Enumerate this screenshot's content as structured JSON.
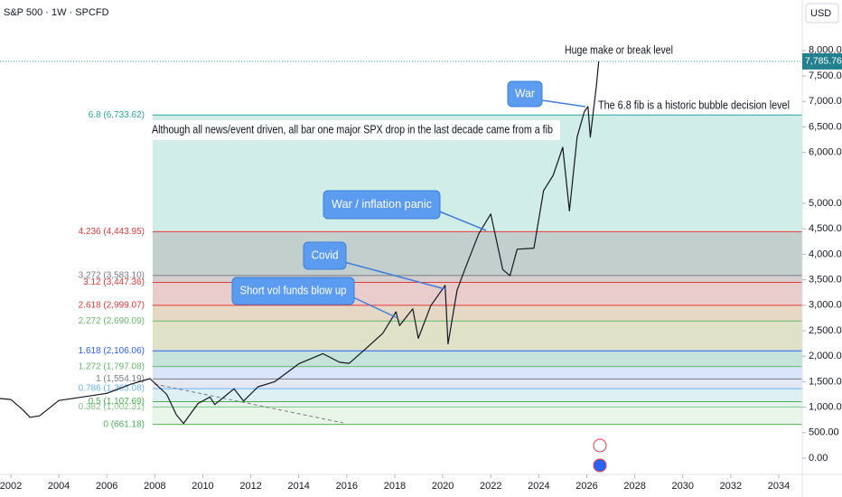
{
  "chart_data": {
    "type": "line",
    "title": "S&P 500 · 1W · SPCFD",
    "currency": "USD",
    "color": "#131722",
    "x": [
      2001.55,
      2002.0,
      2002.5,
      2002.8,
      2003.2,
      2004.0,
      2005.0,
      2006.0,
      2007.0,
      2007.8,
      2008.5,
      2008.9,
      2009.2,
      2009.8,
      2010.3,
      2010.5,
      2011.3,
      2011.7,
      2012.3,
      2013.0,
      2014.0,
      2015.0,
      2015.7,
      2016.1,
      2016.8,
      2017.5,
      2018.05,
      2018.2,
      2018.75,
      2018.98,
      2019.5,
      2020.1,
      2020.22,
      2020.6,
      2021.0,
      2021.5,
      2022.0,
      2022.5,
      2022.8,
      2023.1,
      2023.8,
      2024.2,
      2024.6,
      2025.0,
      2025.28,
      2025.6,
      2025.9,
      2026.05,
      2026.15,
      2026.4,
      2026.5
    ],
    "values": [
      1170,
      1150,
      950,
      800,
      830,
      1130,
      1200,
      1270,
      1450,
      1560,
      1250,
      850,
      680,
      1070,
      1200,
      1050,
      1360,
      1120,
      1400,
      1500,
      1850,
      2050,
      1880,
      1860,
      2150,
      2450,
      2870,
      2600,
      2930,
      2350,
      2990,
      3390,
      2240,
      3300,
      3800,
      4400,
      4790,
      3700,
      3580,
      4100,
      4120,
      5250,
      5550,
      6100,
      4850,
      6300,
      6800,
      6900,
      6300,
      7300,
      7785.76
    ],
    "last_price": {
      "value": 7785.76,
      "label": "7,785.76"
    },
    "xlim": [
      2001.55,
      2034.98
    ],
    "ylim": [
      -320,
      8990
    ],
    "xticks": [
      2002,
      2004,
      2006,
      2008,
      2010,
      2012,
      2014,
      2016,
      2018,
      2020,
      2022,
      2024,
      2026,
      2028,
      2030,
      2032,
      2034
    ],
    "yticks": [
      {
        "value": 0,
        "label": "0.00"
      },
      {
        "value": 500,
        "label": "500.00"
      },
      {
        "value": 1000,
        "label": "1,000.00"
      },
      {
        "value": 1500,
        "label": "1,500.00"
      },
      {
        "value": 2000,
        "label": "2,000.00"
      },
      {
        "value": 2500,
        "label": "2,500.00"
      },
      {
        "value": 3000,
        "label": "3,000.00"
      },
      {
        "value": 3500,
        "label": "3,500.00"
      },
      {
        "value": 4000,
        "label": "4,000.00"
      },
      {
        "value": 4500,
        "label": "4,500.00"
      },
      {
        "value": 5000,
        "label": "5,000.00"
      },
      {
        "value": 6000,
        "label": "6,000.00"
      },
      {
        "value": 6500,
        "label": "6,500.00"
      },
      {
        "value": 7000,
        "label": "7,000.00"
      },
      {
        "value": 7500,
        "label": "7,500.00"
      },
      {
        "value": 8000,
        "label": "8,000.00"
      }
    ],
    "fib_levels": [
      {
        "label": "0 (661.18)",
        "value": 661.18,
        "color": "#4caf50",
        "fill": "#e6f4e6"
      },
      {
        "label": "0.382 (1,002.31)",
        "value": 1002.31,
        "color": "#81c784",
        "fill": "#e3f2ec"
      },
      {
        "label": "0.5 (1,107.69)",
        "value": 1107.69,
        "color": "#4caf50",
        "fill": "#dbeef4"
      },
      {
        "label": "0.786 (1,363.08)",
        "value": 1363.08,
        "color": "#64b5f6",
        "fill": "#e2e6ee"
      },
      {
        "label": "1 (1,554.19)",
        "value": 1554.19,
        "color": "#787b86",
        "fill": "#d4e2fa"
      },
      {
        "label": "1.272 (1,797.08)",
        "value": 1797.08,
        "color": "#66bb6a",
        "fill": "#bfe0d6"
      },
      {
        "label": "1.618 (2,106.06)",
        "value": 2106.06,
        "color": "#2962ff",
        "fill": "#dcdfc0"
      },
      {
        "label": "2.272 (2,690.09)",
        "value": 2690.09,
        "color": "#66bb6a",
        "fill": "#e2d4bf"
      },
      {
        "label": "2.618 (2,999.07)",
        "value": 2999.07,
        "color": "#e53935",
        "fill": "#e6c8c6"
      },
      {
        "label": "3.12 (3,447.36)",
        "value": 3447.36,
        "color": "#e53935",
        "fill": "#cfc9c9"
      },
      {
        "label": "3.272 (3,583.10)",
        "value": 3583.1,
        "color": "#787b86",
        "fill": "#bccac6"
      },
      {
        "label": "4.236 (4,443.95)",
        "value": 4443.95,
        "color": "#e53935",
        "fill": "#cbebe6"
      },
      {
        "label": "6.8 (6,733.62)",
        "value": 6733.62,
        "color": "#26a69a",
        "fill": "none"
      }
    ],
    "annotations": [
      "Huge make or break level",
      "The 6.8 fib is a historic bubble decision level",
      "Although all news/event driven, all bar one major SPX drop in the last decade came from a fib"
    ],
    "callouts": [
      "War",
      "War / inflation panic",
      "Covid",
      "Short vol funds blow up"
    ]
  }
}
